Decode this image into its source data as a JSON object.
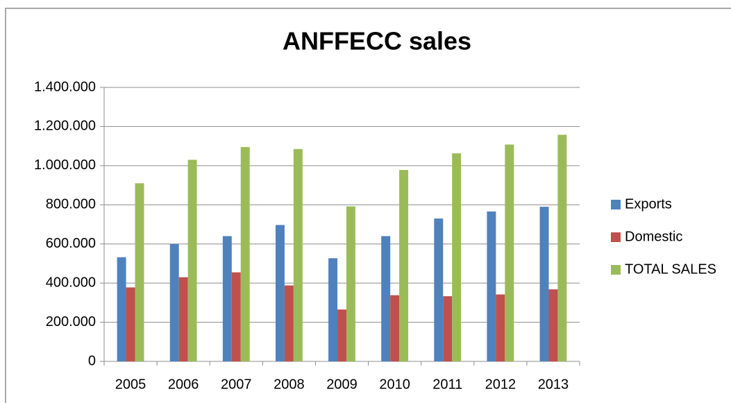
{
  "chart_data": {
    "type": "bar",
    "title": "ANFFECC sales",
    "categories": [
      "2005",
      "2006",
      "2007",
      "2008",
      "2009",
      "2010",
      "2011",
      "2012",
      "2013"
    ],
    "series": [
      {
        "name": "Exports",
        "color": "#4f81bd",
        "values": [
          532000,
          600000,
          640000,
          697000,
          527000,
          640000,
          730000,
          766000,
          790000
        ]
      },
      {
        "name": "Domestic",
        "color": "#c0504d",
        "values": [
          378000,
          430000,
          455000,
          388000,
          265000,
          338000,
          333000,
          342000,
          368000
        ]
      },
      {
        "name": "TOTAL SALES",
        "color": "#9bbb59",
        "values": [
          910000,
          1030000,
          1095000,
          1085000,
          792000,
          978000,
          1063000,
          1108000,
          1158000
        ]
      }
    ],
    "ylim": [
      0,
      1400000
    ],
    "yticks": [
      0,
      {
        "value": 200000,
        "label": "200.000"
      },
      {
        "value": 400000,
        "label": "400.000"
      },
      {
        "value": 600000,
        "label": "600.000"
      },
      {
        "value": 800000,
        "label": "800.000"
      },
      {
        "value": 1000000,
        "label": "1.000.000"
      },
      {
        "value": 1200000,
        "label": "1.200.000"
      },
      {
        "value": 1400000,
        "label": "1.400.000"
      }
    ],
    "grid": true,
    "legend": "right"
  }
}
